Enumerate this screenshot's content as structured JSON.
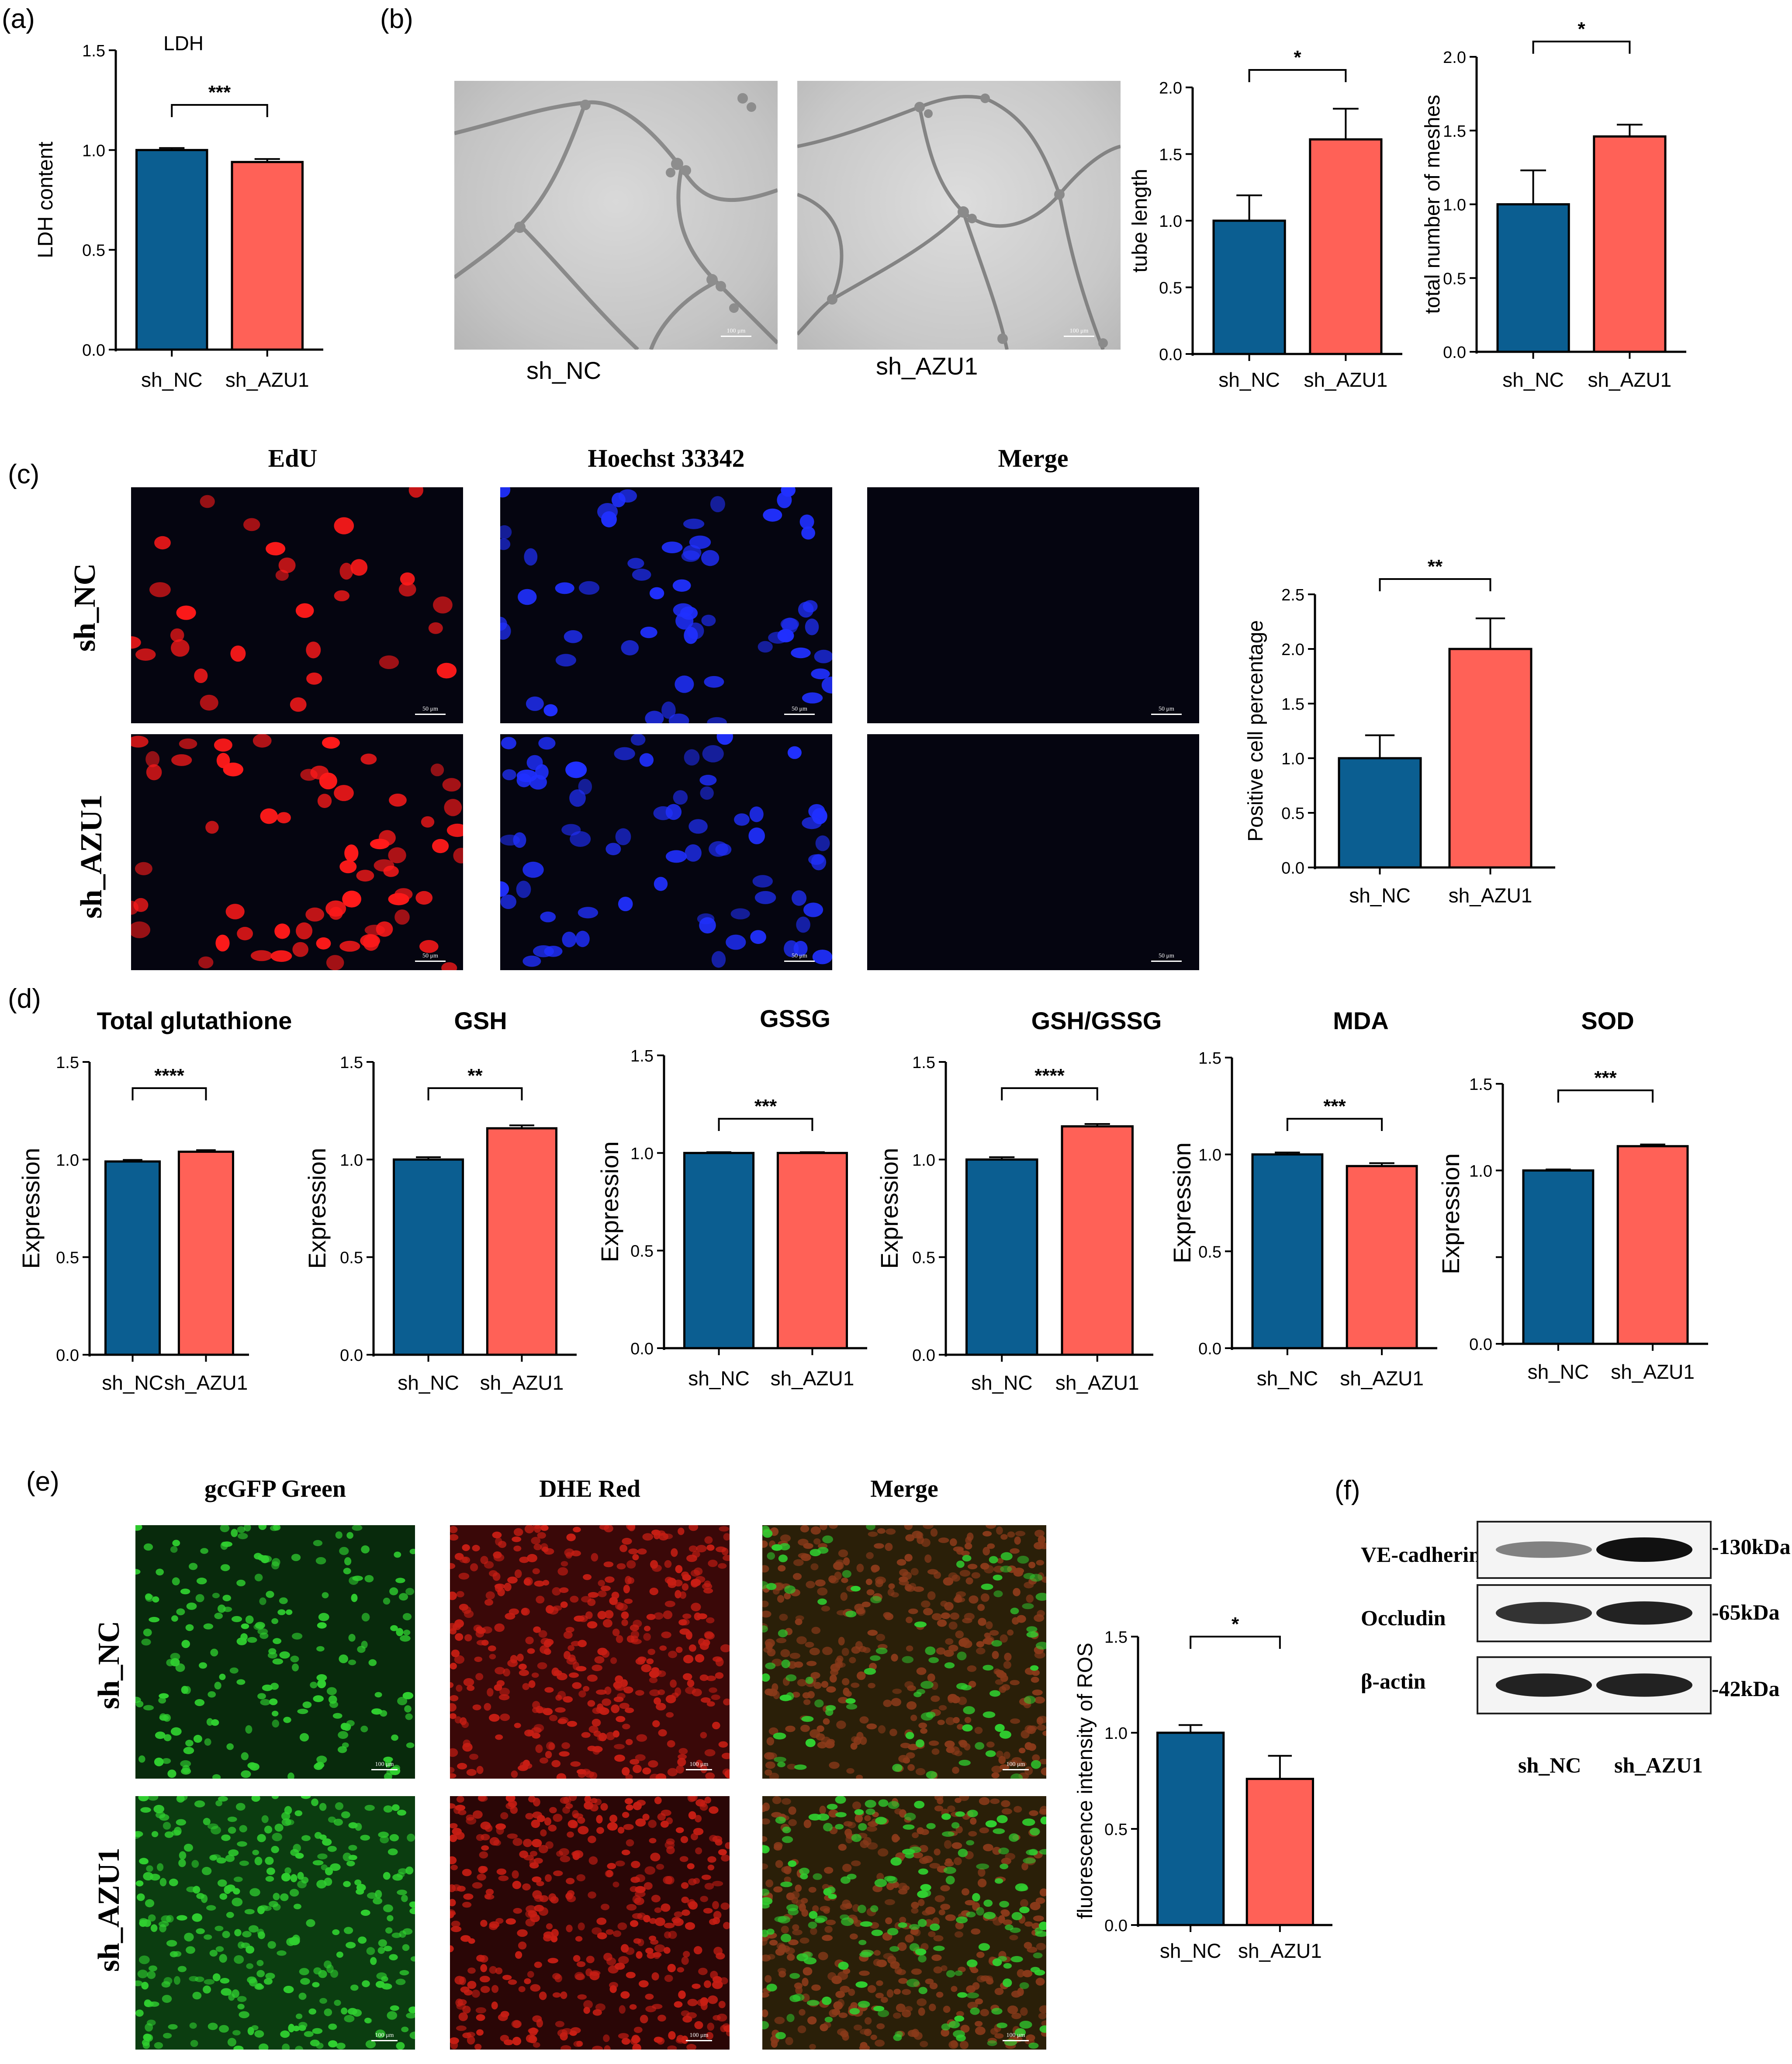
{
  "panel_labels": {
    "a": "(a)",
    "b": "(b)",
    "c": "(c)",
    "d": "(d)",
    "e": "(e)",
    "f": "(f)"
  },
  "colors": {
    "nc": "#0b5e91",
    "azu1": "#ff6157",
    "edu": "#ff1a1a",
    "hoechst": "#2030ff",
    "merge_c": "#e040e0",
    "gfp": "#30d030",
    "dhe": "#c81e14"
  },
  "panel_b": {
    "labels": [
      "sh_NC",
      "sh_AZU1"
    ],
    "scale_text": "100 μm"
  },
  "panel_c": {
    "headers": [
      "EdU",
      "Hoechst 33342",
      "Merge"
    ],
    "rows": [
      "sh_NC",
      "sh_AZU1"
    ],
    "scale_text": "50 μm"
  },
  "panel_e": {
    "headers": [
      "gcGFP Green",
      "DHE Red",
      "Merge"
    ],
    "rows": [
      "sh_NC",
      "sh_AZU1"
    ],
    "scale_text": "100 μm"
  },
  "panel_f": {
    "proteins": [
      "VE-cadherin",
      "Occludin",
      "β-actin"
    ],
    "sizes": [
      "-130kDa",
      "-65kDa",
      "-42kDa"
    ],
    "lanes": [
      "sh_NC",
      "sh_AZU1"
    ],
    "band_intensity": [
      [
        0.35,
        1.0
      ],
      [
        0.8,
        0.9
      ],
      [
        0.9,
        0.9
      ]
    ]
  },
  "chart_data": [
    {
      "id": "a",
      "type": "bar",
      "title": "LDH",
      "ylabel": "LDH content",
      "categories": [
        "sh_NC",
        "sh_AZU1"
      ],
      "values": [
        1.0,
        0.94
      ],
      "errors": [
        0.01,
        0.015
      ],
      "ylim": [
        0,
        1.5
      ],
      "yticks": [
        "0.0",
        "0.5",
        "1.0",
        "1.5"
      ],
      "significance": "***"
    },
    {
      "id": "b1",
      "type": "bar",
      "title": "",
      "ylabel": "tube length",
      "categories": [
        "sh_NC",
        "sh_AZU1"
      ],
      "values": [
        1.0,
        1.61
      ],
      "errors": [
        0.19,
        0.23
      ],
      "ylim": [
        0,
        2.0
      ],
      "yticks": [
        "0.0",
        "0.5",
        "1.0",
        "1.5",
        "2.0"
      ],
      "significance": "*"
    },
    {
      "id": "b2",
      "type": "bar",
      "title": "",
      "ylabel": "total number of meshes",
      "categories": [
        "sh_NC",
        "sh_AZU1"
      ],
      "values": [
        1.0,
        1.46
      ],
      "errors": [
        0.23,
        0.08
      ],
      "ylim": [
        0,
        2.0
      ],
      "yticks": [
        "0.0",
        "0.5",
        "1.0",
        "1.5",
        "2.0"
      ],
      "significance": "*"
    },
    {
      "id": "c",
      "type": "bar",
      "title": "",
      "ylabel": "Positive cell percentage",
      "categories": [
        "sh_NC",
        "sh_AZU1"
      ],
      "values": [
        1.0,
        2.0
      ],
      "errors": [
        0.21,
        0.28
      ],
      "ylim": [
        0,
        2.5
      ],
      "yticks": [
        "0.0",
        "0.5",
        "1.0",
        "1.5",
        "2.0",
        "2.5"
      ],
      "significance": "**"
    },
    {
      "id": "d1",
      "type": "bar",
      "title": "Total glutathione",
      "ylabel": "Expression",
      "categories": [
        "sh_NC",
        "sh_AZU1"
      ],
      "values": [
        0.99,
        1.04
      ],
      "errors": [
        0.008,
        0.008
      ],
      "ylim": [
        0,
        1.5
      ],
      "yticks": [
        "0.0",
        "0.5",
        "1.0",
        "1.5"
      ],
      "significance": "****"
    },
    {
      "id": "d2",
      "type": "bar",
      "title": "GSH",
      "ylabel": "Expression",
      "categories": [
        "sh_NC",
        "sh_AZU1"
      ],
      "values": [
        1.0,
        1.16
      ],
      "errors": [
        0.012,
        0.015
      ],
      "ylim": [
        0,
        1.5
      ],
      "yticks": [
        "0.0",
        "0.5",
        "1.0",
        "1.5"
      ],
      "significance": "**"
    },
    {
      "id": "d3",
      "type": "bar",
      "title": "GSSG",
      "ylabel": "Expression",
      "categories": [
        "sh_NC",
        "sh_AZU1"
      ],
      "values": [
        1.0,
        1.0
      ],
      "errors": [
        0.004,
        0.004
      ],
      "ylim": [
        0,
        1.5
      ],
      "yticks": [
        "0.0",
        "0.5",
        "1.0",
        "1.5"
      ],
      "significance": "***"
    },
    {
      "id": "d4",
      "type": "bar",
      "title": "GSH/GSSG",
      "ylabel": "Expression",
      "categories": [
        "sh_NC",
        "sh_AZU1"
      ],
      "values": [
        1.0,
        1.17
      ],
      "errors": [
        0.012,
        0.012
      ],
      "ylim": [
        0,
        1.5
      ],
      "yticks": [
        "0.0",
        "0.5",
        "1.0",
        "1.5"
      ],
      "significance": "****"
    },
    {
      "id": "d5",
      "type": "bar",
      "title": "MDA",
      "ylabel": "Expression",
      "categories": [
        "sh_NC",
        "sh_AZU1"
      ],
      "values": [
        1.0,
        0.94
      ],
      "errors": [
        0.01,
        0.015
      ],
      "ylim": [
        0,
        1.5
      ],
      "yticks": [
        "0.0",
        "0.5",
        "1.0",
        "1.5"
      ],
      "significance": "***"
    },
    {
      "id": "d6",
      "type": "bar",
      "title": "SOD",
      "ylabel": "Expression",
      "categories": [
        "sh_NC",
        "sh_AZU1"
      ],
      "values": [
        1.0,
        1.14
      ],
      "errors": [
        0.006,
        0.01
      ],
      "ylim": [
        0,
        1.5
      ],
      "yticks": [
        "0.0",
        "",
        "1.0",
        "1.5"
      ],
      "significance": "***"
    },
    {
      "id": "e",
      "type": "bar",
      "title": "",
      "ylabel": "fluorescence intensity of ROS",
      "categories": [
        "sh_NC",
        "sh_AZU1"
      ],
      "values": [
        1.0,
        0.76
      ],
      "errors": [
        0.04,
        0.12
      ],
      "ylim": [
        0,
        1.5
      ],
      "yticks": [
        "0.0",
        "0.5",
        "1.0",
        "1.5"
      ],
      "significance": "*"
    }
  ]
}
